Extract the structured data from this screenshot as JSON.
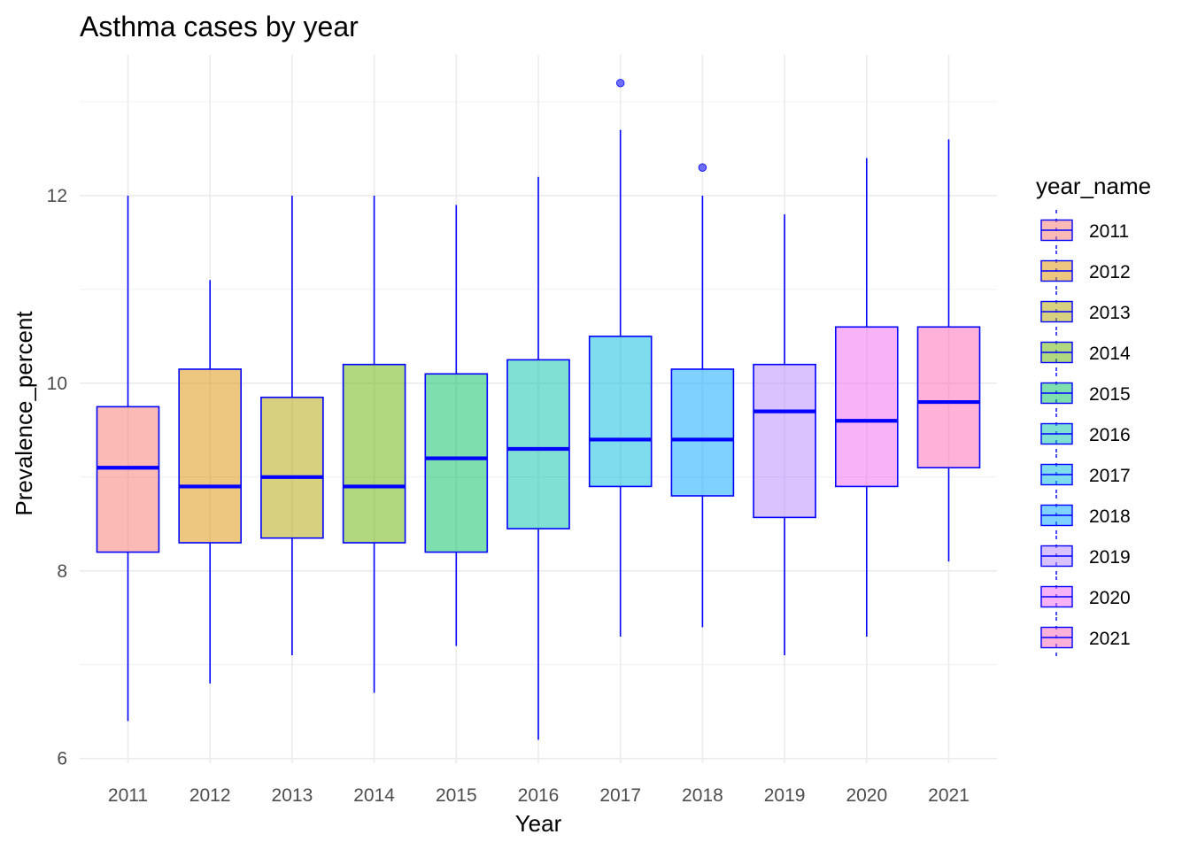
{
  "chart_data": {
    "type": "boxplot",
    "title": "Asthma cases by year",
    "xlabel": "Year",
    "ylabel": "Prevalence_percent",
    "ylim": [
      5.95,
      13.5
    ],
    "yticks": [
      6,
      8,
      10,
      12
    ],
    "grid": true,
    "legend": {
      "title": "year_name",
      "position": "right",
      "items": [
        "2011",
        "2012",
        "2013",
        "2014",
        "2015",
        "2016",
        "2017",
        "2018",
        "2019",
        "2020",
        "2021"
      ]
    },
    "categories": [
      "2011",
      "2012",
      "2013",
      "2014",
      "2015",
      "2016",
      "2017",
      "2018",
      "2019",
      "2020",
      "2021"
    ],
    "boxes": [
      {
        "category": "2011",
        "whisker_low": 6.4,
        "q1": 8.2,
        "median": 9.1,
        "q3": 9.75,
        "whisker_high": 12.0,
        "outliers": []
      },
      {
        "category": "2012",
        "whisker_low": 6.8,
        "q1": 8.3,
        "median": 8.9,
        "q3": 10.15,
        "whisker_high": 11.1,
        "outliers": []
      },
      {
        "category": "2013",
        "whisker_low": 7.1,
        "q1": 8.35,
        "median": 9.0,
        "q3": 9.85,
        "whisker_high": 12.0,
        "outliers": []
      },
      {
        "category": "2014",
        "whisker_low": 6.7,
        "q1": 8.3,
        "median": 8.9,
        "q3": 10.2,
        "whisker_high": 12.0,
        "outliers": []
      },
      {
        "category": "2015",
        "whisker_low": 7.2,
        "q1": 8.2,
        "median": 9.2,
        "q3": 10.1,
        "whisker_high": 11.9,
        "outliers": []
      },
      {
        "category": "2016",
        "whisker_low": 6.2,
        "q1": 8.45,
        "median": 9.3,
        "q3": 10.25,
        "whisker_high": 12.2,
        "outliers": []
      },
      {
        "category": "2017",
        "whisker_low": 7.3,
        "q1": 8.9,
        "median": 9.4,
        "q3": 10.5,
        "whisker_high": 12.7,
        "outliers": [
          13.2
        ]
      },
      {
        "category": "2018",
        "whisker_low": 7.4,
        "q1": 8.8,
        "median": 9.4,
        "q3": 10.15,
        "whisker_high": 12.0,
        "outliers": [
          12.3
        ]
      },
      {
        "category": "2019",
        "whisker_low": 7.1,
        "q1": 8.57,
        "median": 9.7,
        "q3": 10.2,
        "whisker_high": 11.8,
        "outliers": []
      },
      {
        "category": "2020",
        "whisker_low": 7.3,
        "q1": 8.9,
        "median": 9.6,
        "q3": 10.6,
        "whisker_high": 12.4,
        "outliers": []
      },
      {
        "category": "2021",
        "whisker_low": 8.1,
        "q1": 9.1,
        "median": 9.8,
        "q3": 10.6,
        "whisker_high": 12.6,
        "outliers": []
      }
    ],
    "fill_colors": [
      "#f8766d",
      "#db8e00",
      "#aea200",
      "#64b200",
      "#00bd5c",
      "#00c1a7",
      "#00bade",
      "#00a6ff",
      "#b385ff",
      "#ef67eb",
      "#ff63b6"
    ],
    "stroke_color": "#0000ff",
    "outlier_color": "#4040ff"
  }
}
